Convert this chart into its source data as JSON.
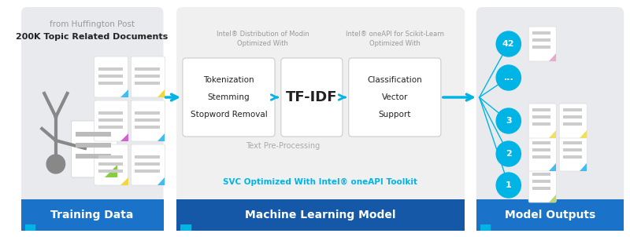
{
  "bg_color": "#ffffff",
  "blue_dark": "#1558a7",
  "blue_mid": "#1a73c8",
  "blue_light": "#00b4e6",
  "gray_section": "#e8eaed",
  "gray_mid": "#aaaaaa",
  "text_dark": "#222222",
  "text_gray": "#999999",
  "header1": "Training Data",
  "header2": "Machine Learning Model",
  "header3": "Model Outputs",
  "subtitle2": "SVC Optimized With Intel® oneAPI Toolkit",
  "label_preprocess": "Text Pre-Processing",
  "box1_lines": [
    "Stopword Removal",
    "Stemming",
    "Tokenization"
  ],
  "box2_label": "TF-IDF",
  "box3_lines": [
    "Support",
    "Vector",
    "Classification"
  ],
  "note1": [
    "Optimized With",
    "Intel® Distribution of Modin"
  ],
  "note2": [
    "Optimized With",
    "Intel® oneAPI for Scikit-Learn"
  ],
  "caption1": "200K Topic Related Documents",
  "caption2": "from Huffington Post",
  "circles": [
    "1",
    "2",
    "3",
    "...",
    "42"
  ],
  "doc_fold_colors_left": [
    "#b8d96e",
    "#cc88cc",
    "#44bbee"
  ],
  "doc_fold_colors_r1": [
    "#f0e060",
    "#44bbee"
  ],
  "doc_fold_colors_r2": [
    "#44bbee",
    "#44bbee"
  ],
  "doc_fold_colors_r3": [
    "#f0e060",
    "#f0e060"
  ],
  "doc_fold_out1": "#b8d96e",
  "doc_fold_out2_l": "#44bbee",
  "doc_fold_out2_r": "#44bbee",
  "doc_fold_out3_l": "#f0e060",
  "doc_fold_out3_r": "#f0e060",
  "doc_fold_42": "#e8aacc"
}
